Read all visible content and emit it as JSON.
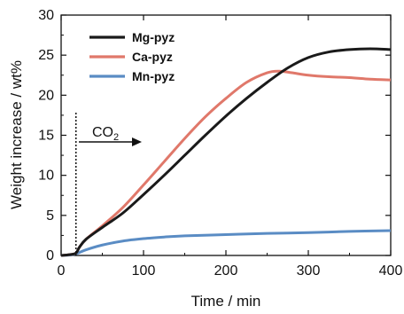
{
  "chart_data": {
    "type": "line",
    "xlabel": "Time / min",
    "ylabel": "Weight increase / wt%",
    "xlim": [
      0,
      400
    ],
    "ylim": [
      0,
      30
    ],
    "xticks": [
      "0",
      "100",
      "200",
      "300",
      "400"
    ],
    "yticks": [
      "0",
      "5",
      "10",
      "15",
      "20",
      "25",
      "30"
    ],
    "grid": false,
    "legend_position": "top-left",
    "annotation": {
      "text": "CO",
      "subscript": "2",
      "marker_x": 18
    },
    "series": [
      {
        "name": "Mg-pyz",
        "color": "#1a1a1a",
        "points": [
          [
            0,
            0
          ],
          [
            10,
            0.1
          ],
          [
            18,
            0.3
          ],
          [
            22,
            1.0
          ],
          [
            30,
            2.0
          ],
          [
            50,
            3.5
          ],
          [
            75,
            5.3
          ],
          [
            100,
            7.6
          ],
          [
            125,
            10.0
          ],
          [
            150,
            12.5
          ],
          [
            175,
            15.0
          ],
          [
            200,
            17.4
          ],
          [
            225,
            19.6
          ],
          [
            250,
            21.6
          ],
          [
            275,
            23.4
          ],
          [
            300,
            24.7
          ],
          [
            325,
            25.4
          ],
          [
            350,
            25.7
          ],
          [
            375,
            25.8
          ],
          [
            400,
            25.7
          ]
        ]
      },
      {
        "name": "Ca-pyz",
        "color": "#e0786a",
        "points": [
          [
            0,
            0
          ],
          [
            10,
            0.1
          ],
          [
            18,
            0.3
          ],
          [
            22,
            1.0
          ],
          [
            30,
            2.0
          ],
          [
            50,
            3.7
          ],
          [
            75,
            6.0
          ],
          [
            100,
            8.8
          ],
          [
            125,
            11.7
          ],
          [
            150,
            14.6
          ],
          [
            175,
            17.3
          ],
          [
            200,
            19.6
          ],
          [
            225,
            21.6
          ],
          [
            250,
            22.8
          ],
          [
            265,
            23.0
          ],
          [
            280,
            22.8
          ],
          [
            300,
            22.5
          ],
          [
            325,
            22.3
          ],
          [
            350,
            22.2
          ],
          [
            375,
            22.0
          ],
          [
            400,
            21.9
          ]
        ]
      },
      {
        "name": "Mn-pyz",
        "color": "#5a8cc4",
        "points": [
          [
            0,
            0
          ],
          [
            10,
            0.05
          ],
          [
            18,
            0.2
          ],
          [
            30,
            0.7
          ],
          [
            50,
            1.3
          ],
          [
            75,
            1.8
          ],
          [
            100,
            2.1
          ],
          [
            125,
            2.3
          ],
          [
            150,
            2.45
          ],
          [
            200,
            2.6
          ],
          [
            250,
            2.75
          ],
          [
            300,
            2.85
          ],
          [
            350,
            3.0
          ],
          [
            400,
            3.1
          ]
        ]
      }
    ]
  }
}
